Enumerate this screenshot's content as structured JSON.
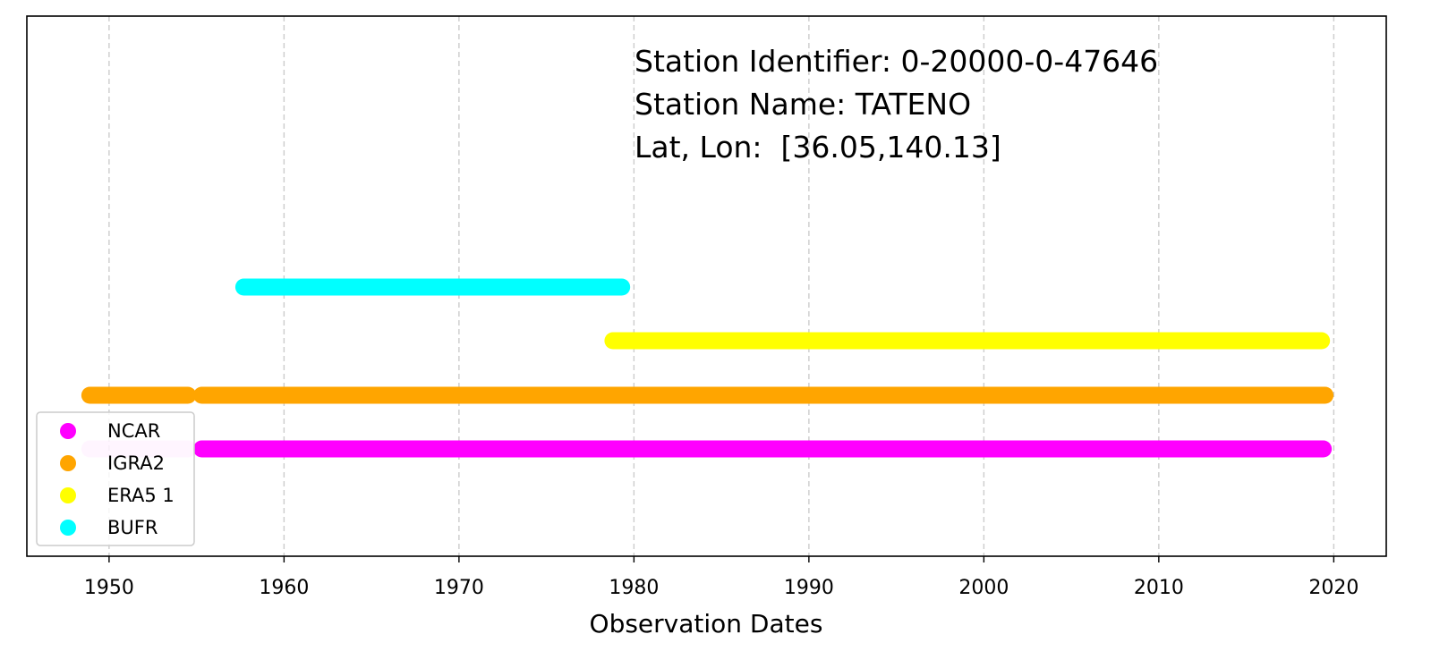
{
  "chart_data": {
    "type": "timeline",
    "xlabel": "Observation Dates",
    "xlim": [
      1945.3,
      2023.0
    ],
    "xticks": [
      1950,
      1960,
      1970,
      1980,
      1990,
      2000,
      2010,
      2020
    ],
    "grid": "vertical-dashed",
    "annotations": [
      "Station Identifier: 0-20000-0-47646",
      "Station Name: TATENO",
      "Lat, Lon:  [36.05,140.13]"
    ],
    "legend_placement": "lower-left",
    "series": [
      {
        "name": "NCAR",
        "color": "#ff00ff",
        "level": 0,
        "segments": [
          {
            "start": 1948.9,
            "end": 1954.5,
            "faded": true
          },
          {
            "start": 1955.3,
            "end": 2019.4
          }
        ]
      },
      {
        "name": "IGRA2",
        "color": "#ffa500",
        "level": 1,
        "segments": [
          {
            "start": 1948.9,
            "end": 1954.5
          },
          {
            "start": 1955.3,
            "end": 2019.5
          }
        ]
      },
      {
        "name": "ERA5 1",
        "color": "#ffff00",
        "level": 2,
        "segments": [
          {
            "start": 1978.8,
            "end": 2019.3
          }
        ]
      },
      {
        "name": "BUFR",
        "color": "#00ffff",
        "level": 3,
        "segments": [
          {
            "start": 1957.7,
            "end": 1979.3
          }
        ]
      }
    ]
  }
}
